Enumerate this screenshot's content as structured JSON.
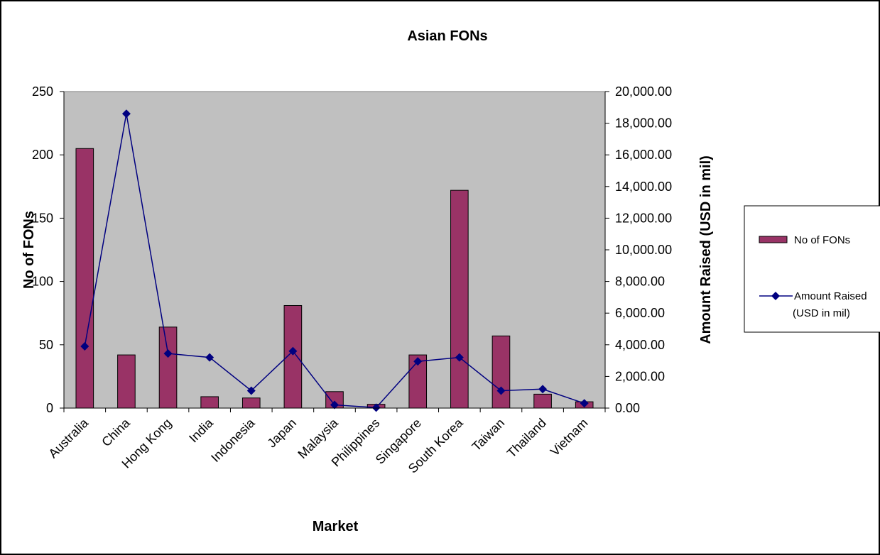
{
  "chart_data": {
    "type": "bar",
    "title": "Asian FONs",
    "xlabel": "Market",
    "ylabel": "No of FONs",
    "y2label": "Amount Raised (USD in mil)",
    "categories": [
      "Australia",
      "China",
      "Hong Kong",
      "India",
      "Indonesia",
      "Japan",
      "Malaysia",
      "Philippines",
      "Singapore",
      "South Korea",
      "Taiwan",
      "Thailand",
      "Vietnam"
    ],
    "ylim": [
      0,
      250
    ],
    "y_ticks": [
      "0",
      "50",
      "100",
      "150",
      "200",
      "250"
    ],
    "y2lim": [
      0,
      20000
    ],
    "y2_ticks": [
      "0.00",
      "2,000.00",
      "4,000.00",
      "6,000.00",
      "8,000.00",
      "10,000.00",
      "12,000.00",
      "14,000.00",
      "16,000.00",
      "18,000.00",
      "20,000.00"
    ],
    "series": [
      {
        "name": "No of  FONs",
        "type": "bar",
        "axis": "left",
        "color": "#993366",
        "values": [
          205,
          42,
          64,
          9,
          8,
          81,
          13,
          3,
          42,
          172,
          57,
          11,
          5
        ]
      },
      {
        "name": "Amount Raised (USD in mil)",
        "type": "line",
        "axis": "right",
        "color": "#000080",
        "values": [
          3900,
          18600,
          3450,
          3200,
          1100,
          3600,
          200,
          30,
          2950,
          3200,
          1100,
          1200,
          300
        ]
      }
    ],
    "legend": {
      "position": "right",
      "bar_label": "No of  FONs",
      "line_label_1": "Amount Raised",
      "line_label_2": "(USD in mil)"
    },
    "grid": false,
    "plot_background": "#c0c0c0"
  }
}
